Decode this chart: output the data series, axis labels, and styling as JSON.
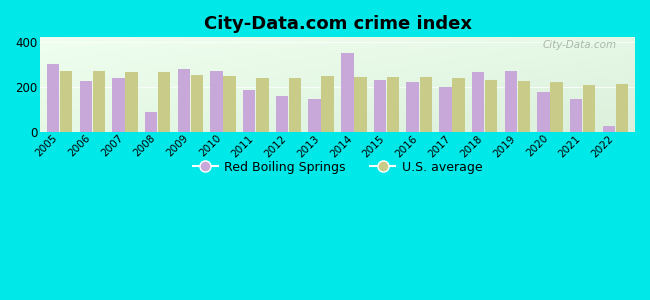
{
  "title": "City-Data.com crime index",
  "years": [
    2005,
    2006,
    2007,
    2008,
    2009,
    2010,
    2011,
    2012,
    2013,
    2014,
    2015,
    2016,
    2017,
    2018,
    2019,
    2020,
    2021,
    2022
  ],
  "red_boiling_springs": [
    300,
    225,
    240,
    90,
    280,
    270,
    185,
    160,
    145,
    350,
    230,
    220,
    200,
    265,
    270,
    175,
    145,
    25
  ],
  "us_average": [
    272,
    272,
    268,
    268,
    252,
    248,
    238,
    238,
    248,
    242,
    242,
    244,
    238,
    232,
    228,
    222,
    208,
    212
  ],
  "bar_color_city": "#c8a8d8",
  "bar_color_us": "#c8cc88",
  "bg_top_left": "#f0fff0",
  "bg_bottom_right": "#d8eed8",
  "outer_background": "#00e8e8",
  "legend_city": "Red Boiling Springs",
  "legend_us": "U.S. average",
  "ylim": [
    0,
    420
  ],
  "yticks": [
    0,
    200,
    400
  ],
  "watermark": "City-Data.com",
  "bar_width": 0.38
}
